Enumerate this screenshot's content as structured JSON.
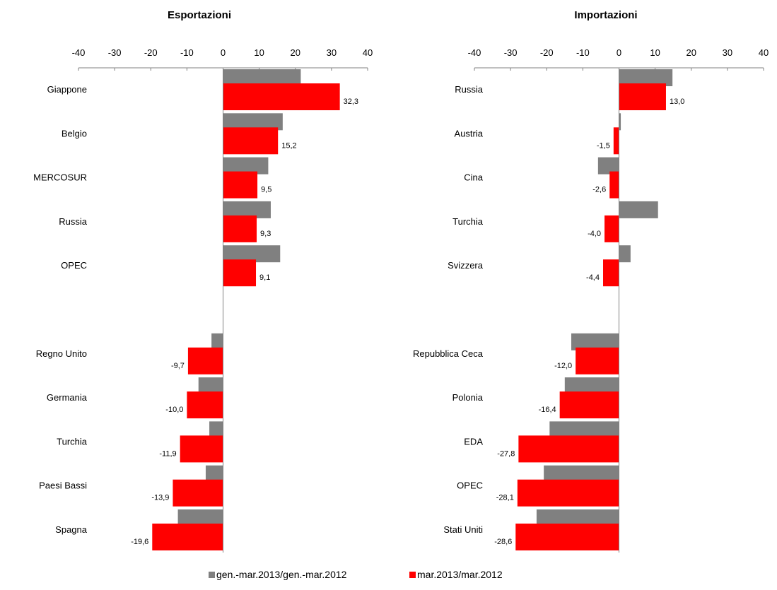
{
  "legend": [
    {
      "label": "gen.-mar.2013/gen.-mar.2012",
      "color": "#808080"
    },
    {
      "label": "mar.2013/mar.2012",
      "color": "#ff0000"
    }
  ],
  "chart_data": [
    {
      "type": "bar",
      "orientation": "horizontal",
      "title": "Esportazioni",
      "xlim": [
        -40,
        40
      ],
      "ticks": [
        -40,
        -30,
        -20,
        -10,
        0,
        10,
        20,
        30,
        40
      ],
      "categories": [
        "Giappone",
        "Belgio",
        "MERCOSUR",
        "Russia",
        "OPEC",
        "",
        "Regno Unito",
        "Germania",
        "Turchia",
        "Paesi Bassi",
        "Spagna"
      ],
      "series": [
        {
          "name": "gen.-mar.2013/gen.-mar.2012",
          "color": "#808080",
          "values": [
            21.5,
            16.5,
            12.5,
            13.2,
            15.8,
            null,
            -3.2,
            -6.8,
            -3.8,
            -4.8,
            -12.5
          ]
        },
        {
          "name": "mar.2013/mar.2012",
          "color": "#ff0000",
          "values": [
            32.3,
            15.2,
            9.5,
            9.3,
            9.1,
            null,
            -9.7,
            -10.0,
            -11.9,
            -13.9,
            -19.6
          ],
          "labels": [
            "32,3",
            "15,2",
            "9,5",
            "9,3",
            "9,1",
            "",
            "-9,7",
            "-10,0",
            "-11,9",
            "-13,9",
            "-19,6"
          ]
        }
      ],
      "grid": false,
      "legend_position": "bottom"
    },
    {
      "type": "bar",
      "orientation": "horizontal",
      "title": "Importazioni",
      "xlim": [
        -40,
        40
      ],
      "ticks": [
        -40,
        -30,
        -20,
        -10,
        0,
        10,
        20,
        30,
        40
      ],
      "categories": [
        "Russia",
        "Austria",
        "Cina",
        "Turchia",
        "Svizzera",
        "",
        "Repubblica Ceca",
        "Polonia",
        "EDA",
        "OPEC",
        "Stati Uniti"
      ],
      "series": [
        {
          "name": "gen.-mar.2013/gen.-mar.2012",
          "color": "#808080",
          "values": [
            14.8,
            0.5,
            -5.8,
            10.8,
            3.2,
            null,
            -13.2,
            -15.0,
            -19.2,
            -20.8,
            -22.8
          ]
        },
        {
          "name": "mar.2013/mar.2012",
          "color": "#ff0000",
          "values": [
            13.0,
            -1.5,
            -2.6,
            -4.0,
            -4.4,
            null,
            -12.0,
            -16.4,
            -27.8,
            -28.1,
            -28.6
          ],
          "labels": [
            "13,0",
            "-1,5",
            "-2,6",
            "-4,0",
            "-4,4",
            "",
            "-12,0",
            "-16,4",
            "-27,8",
            "-28,1",
            "-28,6"
          ]
        }
      ],
      "grid": false,
      "legend_position": "bottom"
    }
  ]
}
